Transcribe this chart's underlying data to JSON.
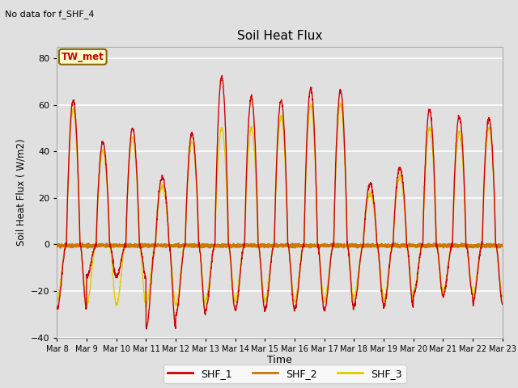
{
  "title": "Soil Heat Flux",
  "ylabel": "Soil Heat Flux ( W/m2)",
  "xlabel": "Time",
  "no_data_text": "No data for f_SHF_4",
  "annotation_text": "TW_met",
  "ylim": [
    -40,
    85
  ],
  "yticks": [
    -40,
    -20,
    0,
    20,
    40,
    60,
    80
  ],
  "bg_color": "#e0e0e0",
  "grid_color": "#ffffff",
  "shf1_color": "#cc0000",
  "shf2_color": "#cc7700",
  "shf3_color": "#ddcc00",
  "legend_labels": [
    "SHF_1",
    "SHF_2",
    "SHF_3"
  ],
  "n_days": 15,
  "start_day": 8,
  "points_per_day": 144,
  "shf1_peaks": [
    62,
    44,
    50,
    29,
    48,
    72,
    63,
    62,
    67,
    66,
    26,
    33,
    58,
    55,
    54
  ],
  "shf1_troughs": [
    -28,
    -14,
    -14,
    -36,
    -30,
    -28,
    -28,
    -28,
    -28,
    -28,
    -26,
    -27,
    -22,
    -22,
    -25
  ],
  "shf3_peaks": [
    58,
    40,
    46,
    25,
    44,
    50,
    50,
    55,
    60,
    60,
    22,
    29,
    50,
    48,
    50
  ],
  "shf3_troughs": [
    -24,
    -26,
    -26,
    -26,
    -26,
    -24,
    -24,
    -24,
    -24,
    -24,
    -22,
    -24,
    -20,
    -20,
    -22
  ]
}
